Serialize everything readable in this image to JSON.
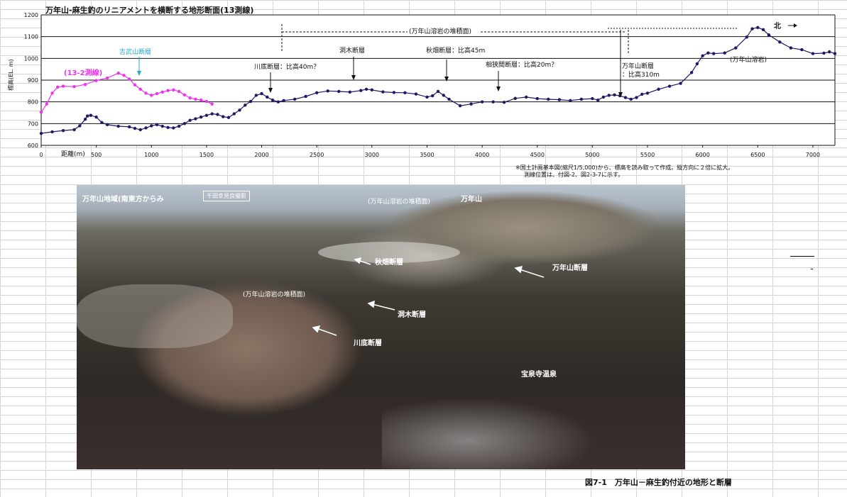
{
  "chart_data": {
    "type": "line",
    "title": "万年山-麻生釣のリニアメントを横断する地形断面(13測線)",
    "xlabel": "距離(m)",
    "ylabel": "標高(EL. m)",
    "xlim": [
      0,
      7200
    ],
    "ylim": [
      600,
      1200
    ],
    "x_ticks": [
      "0",
      "500",
      "1000",
      "1500",
      "2000",
      "2500",
      "3000",
      "3500",
      "4000",
      "4500",
      "5000",
      "5500",
      "6000",
      "6500",
      "7000"
    ],
    "y_ticks": [
      "600",
      "700",
      "800",
      "900",
      "1000",
      "1100",
      "1200"
    ],
    "grid": true,
    "series": [
      {
        "name": "",
        "color": "#1a1a66",
        "points": [
          [
            0,
            655
          ],
          [
            100,
            662
          ],
          [
            200,
            668
          ],
          [
            300,
            672
          ],
          [
            350,
            690
          ],
          [
            400,
            720
          ],
          [
            420,
            735
          ],
          [
            450,
            738
          ],
          [
            500,
            730
          ],
          [
            550,
            705
          ],
          [
            600,
            695
          ],
          [
            700,
            688
          ],
          [
            800,
            685
          ],
          [
            850,
            678
          ],
          [
            900,
            672
          ],
          [
            950,
            680
          ],
          [
            1000,
            690
          ],
          [
            1050,
            695
          ],
          [
            1100,
            688
          ],
          [
            1150,
            682
          ],
          [
            1200,
            680
          ],
          [
            1250,
            688
          ],
          [
            1300,
            700
          ],
          [
            1350,
            715
          ],
          [
            1400,
            722
          ],
          [
            1450,
            730
          ],
          [
            1500,
            738
          ],
          [
            1550,
            745
          ],
          [
            1600,
            742
          ],
          [
            1650,
            732
          ],
          [
            1700,
            728
          ],
          [
            1750,
            745
          ],
          [
            1800,
            762
          ],
          [
            1850,
            785
          ],
          [
            1900,
            802
          ],
          [
            1950,
            830
          ],
          [
            2000,
            838
          ],
          [
            2050,
            822
          ],
          [
            2100,
            808
          ],
          [
            2150,
            800
          ],
          [
            2200,
            806
          ],
          [
            2300,
            812
          ],
          [
            2400,
            825
          ],
          [
            2500,
            842
          ],
          [
            2600,
            850
          ],
          [
            2700,
            848
          ],
          [
            2800,
            845
          ],
          [
            2900,
            852
          ],
          [
            2950,
            858
          ],
          [
            3000,
            855
          ],
          [
            3100,
            846
          ],
          [
            3200,
            843
          ],
          [
            3300,
            842
          ],
          [
            3400,
            836
          ],
          [
            3500,
            822
          ],
          [
            3550,
            828
          ],
          [
            3600,
            848
          ],
          [
            3650,
            830
          ],
          [
            3700,
            812
          ],
          [
            3800,
            782
          ],
          [
            3900,
            790
          ],
          [
            4000,
            800
          ],
          [
            4100,
            800
          ],
          [
            4200,
            798
          ],
          [
            4300,
            816
          ],
          [
            4400,
            822
          ],
          [
            4500,
            815
          ],
          [
            4600,
            812
          ],
          [
            4700,
            810
          ],
          [
            4800,
            806
          ],
          [
            4900,
            812
          ],
          [
            5000,
            815
          ],
          [
            5050,
            808
          ],
          [
            5100,
            822
          ],
          [
            5150,
            830
          ],
          [
            5200,
            832
          ],
          [
            5250,
            828
          ],
          [
            5300,
            820
          ],
          [
            5350,
            812
          ],
          [
            5400,
            820
          ],
          [
            5450,
            835
          ],
          [
            5500,
            840
          ],
          [
            5600,
            858
          ],
          [
            5700,
            872
          ],
          [
            5800,
            885
          ],
          [
            5900,
            935
          ],
          [
            5950,
            975
          ],
          [
            6000,
            1012
          ],
          [
            6050,
            1025
          ],
          [
            6100,
            1022
          ],
          [
            6200,
            1025
          ],
          [
            6300,
            1048
          ],
          [
            6400,
            1098
          ],
          [
            6450,
            1136
          ],
          [
            6500,
            1142
          ],
          [
            6550,
            1132
          ],
          [
            6600,
            1108
          ],
          [
            6700,
            1075
          ],
          [
            6800,
            1048
          ],
          [
            6900,
            1040
          ],
          [
            7000,
            1022
          ],
          [
            7100,
            1024
          ],
          [
            7150,
            1030
          ],
          [
            7200,
            1022
          ]
        ]
      },
      {
        "name": "(13-2測線)",
        "color": "#ee33ee",
        "points": [
          [
            0,
            752
          ],
          [
            50,
            790
          ],
          [
            100,
            840
          ],
          [
            150,
            868
          ],
          [
            200,
            872
          ],
          [
            300,
            870
          ],
          [
            400,
            880
          ],
          [
            500,
            898
          ],
          [
            600,
            910
          ],
          [
            700,
            932
          ],
          [
            750,
            922
          ],
          [
            800,
            905
          ],
          [
            850,
            878
          ],
          [
            900,
            858
          ],
          [
            950,
            840
          ],
          [
            1000,
            830
          ],
          [
            1050,
            838
          ],
          [
            1100,
            845
          ],
          [
            1150,
            852
          ],
          [
            1200,
            855
          ],
          [
            1250,
            848
          ],
          [
            1300,
            832
          ],
          [
            1350,
            818
          ],
          [
            1400,
            812
          ],
          [
            1450,
            808
          ],
          [
            1500,
            802
          ],
          [
            1550,
            790
          ]
        ]
      }
    ],
    "annotations": {
      "yoshitake_fault": "吉武山断層",
      "kawazoko_fault": "川底断層：比高40m？",
      "horaki_fault": "洞木断層",
      "akibata_fault": "秋畑断層：比高45m",
      "aibasama_fault": "相狭間断層：比高20m？",
      "haneyama_fault_1": "万年山断層",
      "haneyama_fault_2": "：比高310m",
      "lava_surface": "(万年山溶岩の堆積面)",
      "lava_rock": "(万年山溶岩)",
      "north": "北"
    }
  },
  "notes": {
    "line1": "※国土計画基本図(縮尺1/5,000)から、標高を読み取って作成。縦方向に２倍に拡大。",
    "line2": "測線位置は、付図-2、図2-3-7に示す。"
  },
  "photo": {
    "title": "万年山地域(南東方からみ",
    "credit": "千田幸見良撮影",
    "labels": {
      "lava_surface_top": "(万年山溶岩の堆積面)",
      "haneyama": "万年山",
      "akibata": "秋畑断層",
      "haneyama_fault": "万年山断層",
      "lava_surface_mid": "(万年山溶岩の堆積面)",
      "horaki": "洞木断層",
      "kawazoko": "川底断層",
      "hosenji": "宝泉寺温泉"
    }
  },
  "caption": "図7-1　万年山－麻生釣付近の地形と断層"
}
